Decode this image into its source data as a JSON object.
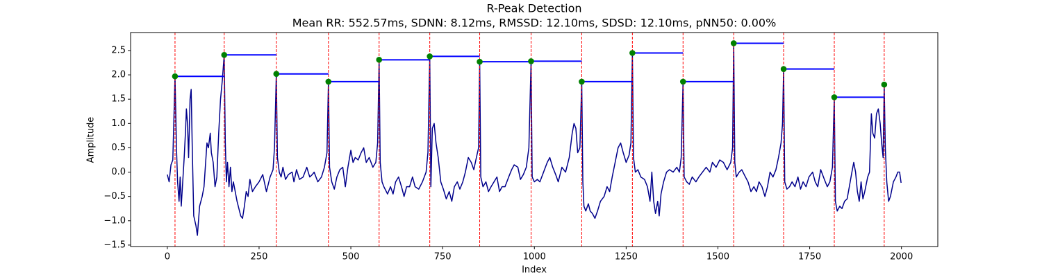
{
  "chart_data": {
    "type": "line",
    "title": "R-Peak Detection",
    "subtitle": "Mean RR: 552.57ms, SDNN: 8.12ms, RMSSD: 12.10ms, SDSD: 12.10ms, pNN50: 0.00%",
    "xlabel": "Index",
    "ylabel": "Amplitude",
    "xlim": [
      -100,
      2099
    ],
    "ylim": [
      -1.53,
      2.87
    ],
    "xticks": [
      0,
      250,
      500,
      750,
      1000,
      1250,
      1500,
      1750,
      2000
    ],
    "yticks": [
      {
        "value": -1.5,
        "label": "−1.5"
      },
      {
        "value": -1,
        "label": "−1.0"
      },
      {
        "value": -0.5,
        "label": "−0.5"
      },
      {
        "value": 0,
        "label": "0.0"
      },
      0.5,
      {
        "value": 1,
        "label": "1.0"
      },
      1.5,
      {
        "value": 2,
        "label": "2.0"
      },
      2.5
    ],
    "signal": {
      "color": "#00008b",
      "x": [
        0,
        5,
        10,
        15,
        21,
        25,
        28,
        32,
        35,
        38,
        42,
        46,
        50,
        52,
        55,
        58,
        62,
        65,
        68,
        72,
        78,
        82,
        88,
        95,
        100,
        108,
        112,
        117,
        120,
        125,
        130,
        135,
        140,
        145,
        150,
        155,
        158,
        161,
        164,
        168,
        172,
        176,
        180,
        190,
        200,
        205,
        210,
        215,
        220,
        225,
        232,
        240,
        250,
        260,
        270,
        280,
        288,
        292,
        297,
        300,
        305,
        310,
        315,
        322,
        330,
        340,
        345,
        352,
        360,
        370,
        380,
        388,
        395,
        400,
        410,
        420,
        428,
        435,
        439,
        442,
        448,
        455,
        462,
        470,
        478,
        485,
        492,
        500,
        506,
        512,
        520,
        528,
        535,
        542,
        550,
        560,
        568,
        573,
        577,
        580,
        585,
        590,
        600,
        608,
        615,
        622,
        630,
        638,
        645,
        652,
        660,
        668,
        675,
        685,
        695,
        705,
        710,
        715,
        718,
        722,
        727,
        732,
        738,
        745,
        752,
        760,
        768,
        775,
        782,
        790,
        797,
        805,
        812,
        820,
        828,
        835,
        842,
        848,
        851,
        854,
        860,
        868,
        875,
        882,
        890,
        898,
        905,
        912,
        920,
        930,
        938,
        945,
        955,
        962,
        970,
        978,
        985,
        991,
        994,
        1000,
        1008,
        1015,
        1025,
        1035,
        1042,
        1050,
        1058,
        1065,
        1075,
        1085,
        1095,
        1103,
        1108,
        1113,
        1118,
        1124,
        1129,
        1132,
        1135,
        1140,
        1147,
        1152,
        1158,
        1165,
        1172,
        1180,
        1190,
        1198,
        1205,
        1212,
        1220,
        1228,
        1235,
        1242,
        1250,
        1258,
        1263,
        1267,
        1270,
        1275,
        1282,
        1290,
        1300,
        1308,
        1315,
        1320,
        1325,
        1330,
        1336,
        1340,
        1345,
        1352,
        1360,
        1368,
        1378,
        1388,
        1395,
        1400,
        1405,
        1408,
        1415,
        1422,
        1430,
        1440,
        1448,
        1458,
        1468,
        1478,
        1485,
        1495,
        1505,
        1515,
        1525,
        1535,
        1540,
        1543,
        1546,
        1550,
        1558,
        1565,
        1575,
        1582,
        1590,
        1598,
        1605,
        1612,
        1620,
        1628,
        1635,
        1642,
        1650,
        1658,
        1665,
        1672,
        1676,
        1679,
        1682,
        1688,
        1695,
        1702,
        1710,
        1718,
        1725,
        1732,
        1740,
        1748,
        1758,
        1765,
        1772,
        1780,
        1790,
        1798,
        1805,
        1812,
        1817,
        1820,
        1825,
        1832,
        1838,
        1845,
        1852,
        1858,
        1865,
        1870,
        1875,
        1880,
        1885,
        1890,
        1895,
        1900,
        1908,
        1913,
        1918,
        1922,
        1927,
        1932,
        1937,
        1942,
        1946,
        1950,
        1953,
        1956,
        1960,
        1965,
        1970,
        1978,
        1985,
        1990,
        1995,
        1999
      ],
      "values": [
        -0.05,
        -0.2,
        0.15,
        0.25,
        1.97,
        0.5,
        -0.2,
        -0.6,
        -0.1,
        -0.7,
        -0.2,
        0.3,
        0.9,
        1.3,
        1.0,
        0.3,
        1.5,
        1.7,
        0.5,
        -0.9,
        -1.1,
        -1.3,
        -0.7,
        -0.5,
        -0.3,
        0.6,
        0.5,
        0.8,
        0.4,
        0.2,
        -0.3,
        -0.1,
        0.8,
        1.5,
        1.9,
        2.41,
        0.6,
        -0.2,
        0.2,
        -0.3,
        0.1,
        -0.4,
        -0.2,
        -0.6,
        -0.9,
        -0.95,
        -0.7,
        -0.4,
        -0.5,
        -0.15,
        -0.4,
        -0.3,
        -0.2,
        -0.05,
        -0.4,
        -0.1,
        0.05,
        0.5,
        2.02,
        0.3,
        0.0,
        -0.1,
        0.1,
        -0.15,
        -0.05,
        0.0,
        -0.2,
        0.05,
        -0.15,
        -0.1,
        0.1,
        -0.1,
        -0.05,
        0.0,
        -0.2,
        -0.1,
        0.1,
        0.4,
        1.86,
        0.1,
        -0.2,
        -0.35,
        -0.1,
        0.05,
        0.1,
        -0.3,
        0.1,
        0.45,
        0.2,
        0.3,
        0.25,
        0.4,
        0.5,
        0.2,
        0.3,
        0.1,
        0.2,
        0.6,
        2.31,
        0.2,
        -0.2,
        -0.3,
        -0.45,
        -0.3,
        -0.45,
        -0.2,
        -0.1,
        -0.3,
        -0.5,
        -0.3,
        -0.3,
        -0.1,
        -0.3,
        -0.35,
        -0.2,
        0.0,
        0.4,
        2.38,
        -0.3,
        0.9,
        1.0,
        0.6,
        0.3,
        -0.2,
        -0.35,
        -0.55,
        -0.4,
        -0.6,
        -0.3,
        -0.2,
        -0.35,
        -0.2,
        0.0,
        0.3,
        0.2,
        0.05,
        0.3,
        0.5,
        2.27,
        -0.1,
        -0.3,
        -0.2,
        -0.4,
        -0.3,
        -0.2,
        -0.1,
        -0.4,
        -0.3,
        -0.3,
        -0.1,
        0.05,
        0.15,
        0.1,
        -0.15,
        -0.05,
        0.1,
        0.5,
        2.28,
        -0.1,
        -0.2,
        -0.15,
        -0.2,
        0.0,
        0.2,
        0.3,
        0.1,
        -0.05,
        -0.2,
        0.1,
        0.0,
        0.3,
        0.8,
        1.0,
        0.9,
        0.4,
        0.5,
        1.86,
        -0.2,
        -0.7,
        -0.8,
        -0.65,
        -0.8,
        -0.85,
        -0.95,
        -0.8,
        -0.6,
        -0.5,
        -0.3,
        -0.4,
        -0.1,
        0.2,
        0.5,
        0.6,
        0.4,
        0.2,
        0.35,
        0.6,
        2.45,
        0.3,
        0.0,
        0.05,
        -0.1,
        -0.15,
        -0.3,
        -0.6,
        0.0,
        -0.6,
        -0.85,
        -0.6,
        -0.9,
        -0.45,
        -0.2,
        0.0,
        0.05,
        0.0,
        0.1,
        0.0,
        0.3,
        1.86,
        -0.1,
        -0.2,
        -0.25,
        -0.1,
        -0.2,
        -0.1,
        0.0,
        0.1,
        0.0,
        0.2,
        0.1,
        0.25,
        0.2,
        0.05,
        0.2,
        0.5,
        2.65,
        0.2,
        -0.1,
        0.0,
        0.05,
        -0.1,
        -0.2,
        -0.4,
        -0.3,
        -0.4,
        -0.2,
        -0.3,
        -0.5,
        -0.3,
        0.0,
        -0.1,
        0.05,
        0.3,
        0.6,
        1.0,
        2.12,
        -0.2,
        -0.35,
        -0.3,
        -0.2,
        -0.3,
        -0.1,
        -0.35,
        -0.2,
        -0.3,
        -0.1,
        0.0,
        -0.2,
        -0.3,
        0.05,
        -0.15,
        -0.3,
        -0.2,
        0.1,
        1.54,
        -0.6,
        -0.8,
        -0.7,
        -0.75,
        -0.6,
        -0.55,
        -0.3,
        0.0,
        0.2,
        0.0,
        -0.4,
        -0.6,
        -0.2,
        -0.55,
        -0.4,
        -0.1,
        0.0,
        1.2,
        0.8,
        0.7,
        1.2,
        1.3,
        1.0,
        0.6,
        0.3,
        1.8,
        0.5,
        -0.2,
        -0.6,
        -0.5,
        -0.2,
        -0.1,
        0.0,
        0.0,
        -0.22
      ]
    },
    "peaks": {
      "color": "#008000",
      "x": [
        21,
        155,
        297,
        439,
        577,
        715,
        851,
        991,
        1129,
        1267,
        1405,
        1543,
        1679,
        1817,
        1953
      ],
      "values": [
        1.97,
        2.41,
        2.02,
        1.86,
        2.31,
        2.38,
        2.27,
        2.28,
        1.86,
        2.45,
        1.86,
        2.65,
        2.12,
        1.54,
        1.8
      ]
    },
    "peak_line_color": "#ff0000",
    "rr_line_color": "#0000ff"
  }
}
